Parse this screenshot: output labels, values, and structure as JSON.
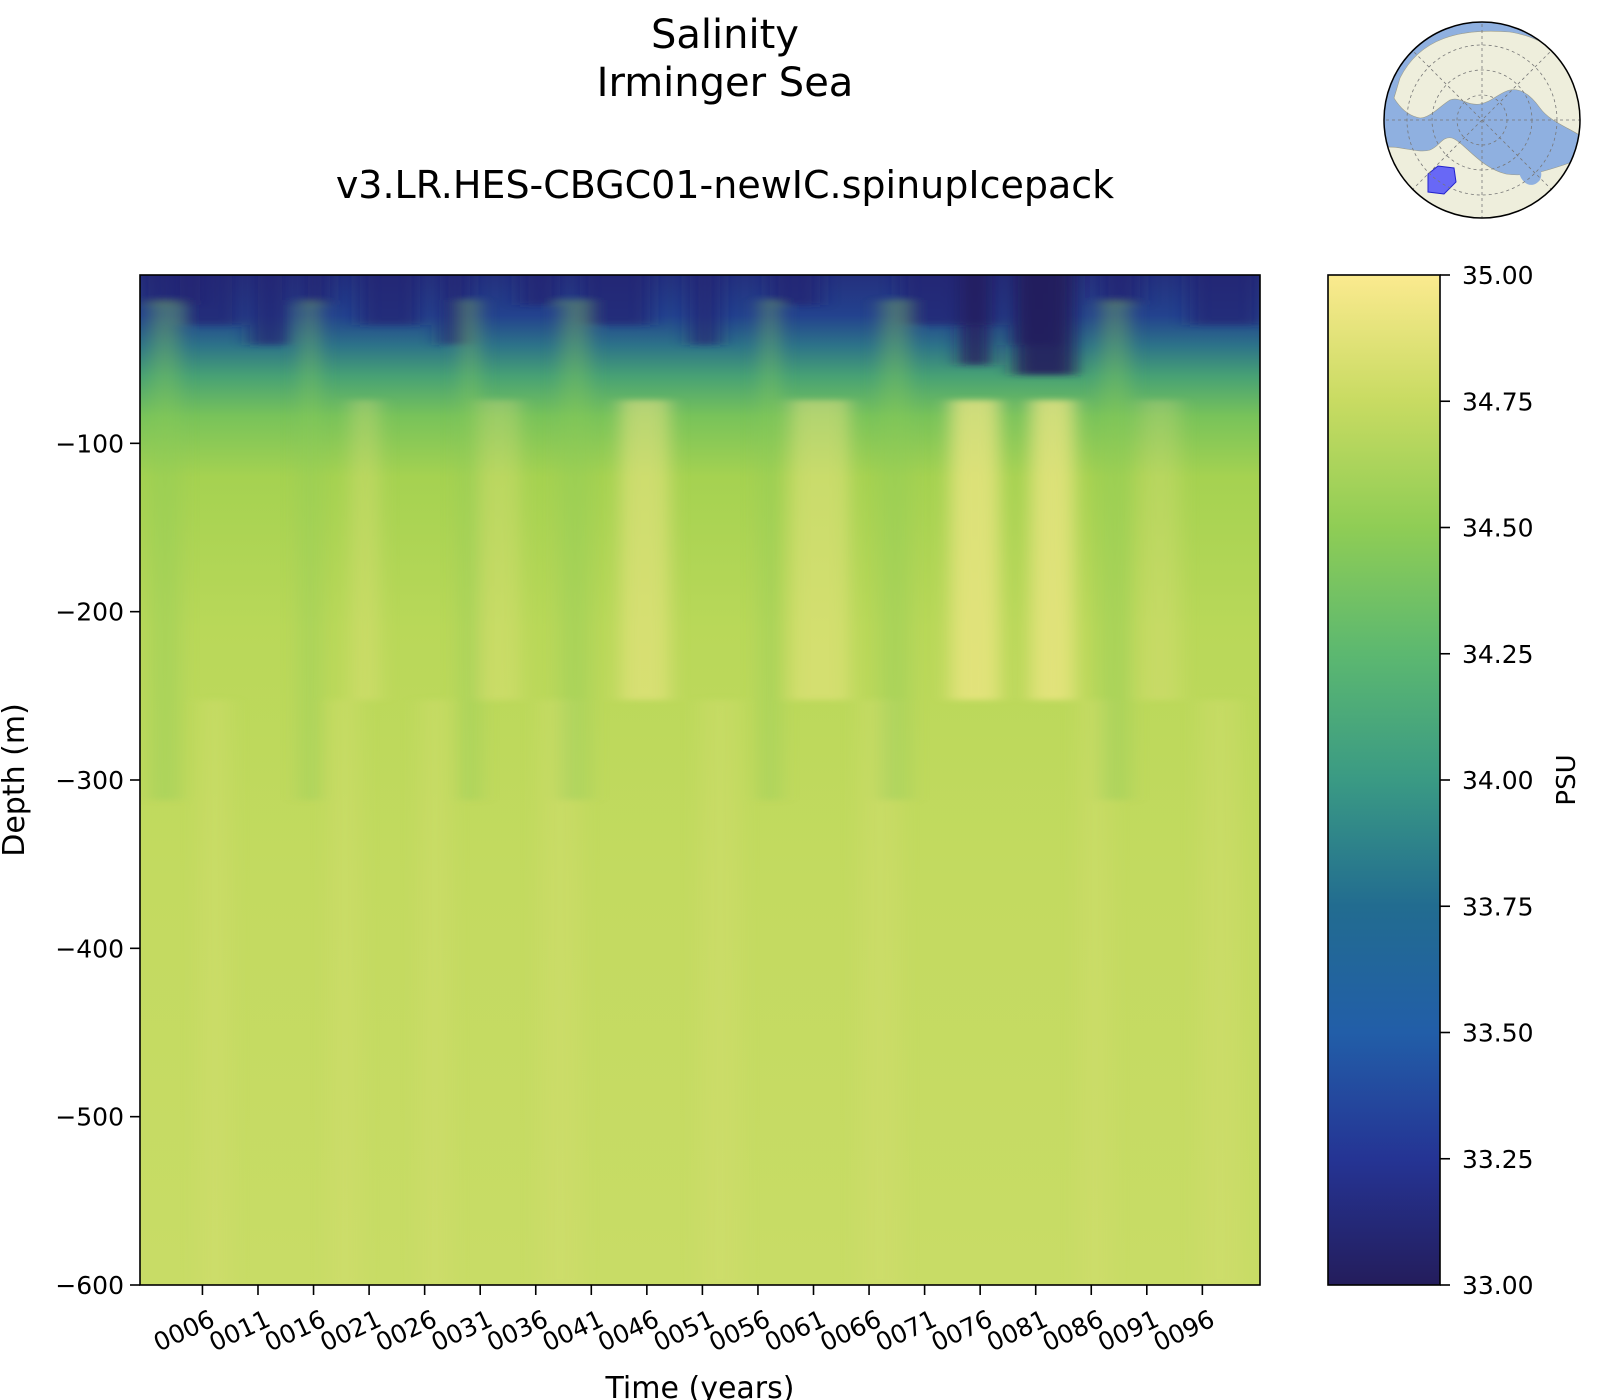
{
  "title": "Salinity",
  "region": "Irminger Sea",
  "subtitle": "v3.LR.HES-CBGC01-newIC.spinupIcepack",
  "chart_data": {
    "type": "heatmap",
    "xlabel": "Time (years)",
    "ylabel": "Depth (m)",
    "x_tick_labels": [
      "0006",
      "0011",
      "0016",
      "0021",
      "0026",
      "0031",
      "0036",
      "0041",
      "0046",
      "0051",
      "0056",
      "0061",
      "0066",
      "0071",
      "0076",
      "0081",
      "0086",
      "0091",
      "0096"
    ],
    "y_ticks": [
      -100,
      -200,
      -300,
      -400,
      -500,
      -600
    ],
    "ylim": [
      -600,
      0
    ],
    "colorbar": {
      "label": "PSU",
      "ticks": [
        "33.00",
        "33.25",
        "33.50",
        "33.75",
        "34.00",
        "34.25",
        "34.50",
        "34.75",
        "35.00"
      ],
      "range": [
        33.0,
        35.0
      ],
      "colormap": "YlGnBu_r",
      "colors": [
        "#241d5c",
        "#253494",
        "#225ea8",
        "#1d91c0",
        "#41b6c4",
        "#7fcdbb",
        "#c7e9b4",
        "#edf8b1",
        "#ffffd9"
      ]
    },
    "grid": false,
    "depth_profile": [
      {
        "depth": 0,
        "salinity": 33.35
      },
      {
        "depth": -50,
        "salinity": 33.8
      },
      {
        "depth": -100,
        "salinity": 34.55
      },
      {
        "depth": -150,
        "salinity": 34.7
      },
      {
        "depth": -200,
        "salinity": 34.72
      },
      {
        "depth": -300,
        "salinity": 34.76
      },
      {
        "depth": -400,
        "salinity": 34.8
      },
      {
        "depth": -500,
        "salinity": 34.82
      },
      {
        "depth": -600,
        "salinity": 34.84
      }
    ]
  },
  "inset_map": {
    "region_highlighted": "Irminger Sea",
    "highlight_color": "#3b3bff"
  }
}
